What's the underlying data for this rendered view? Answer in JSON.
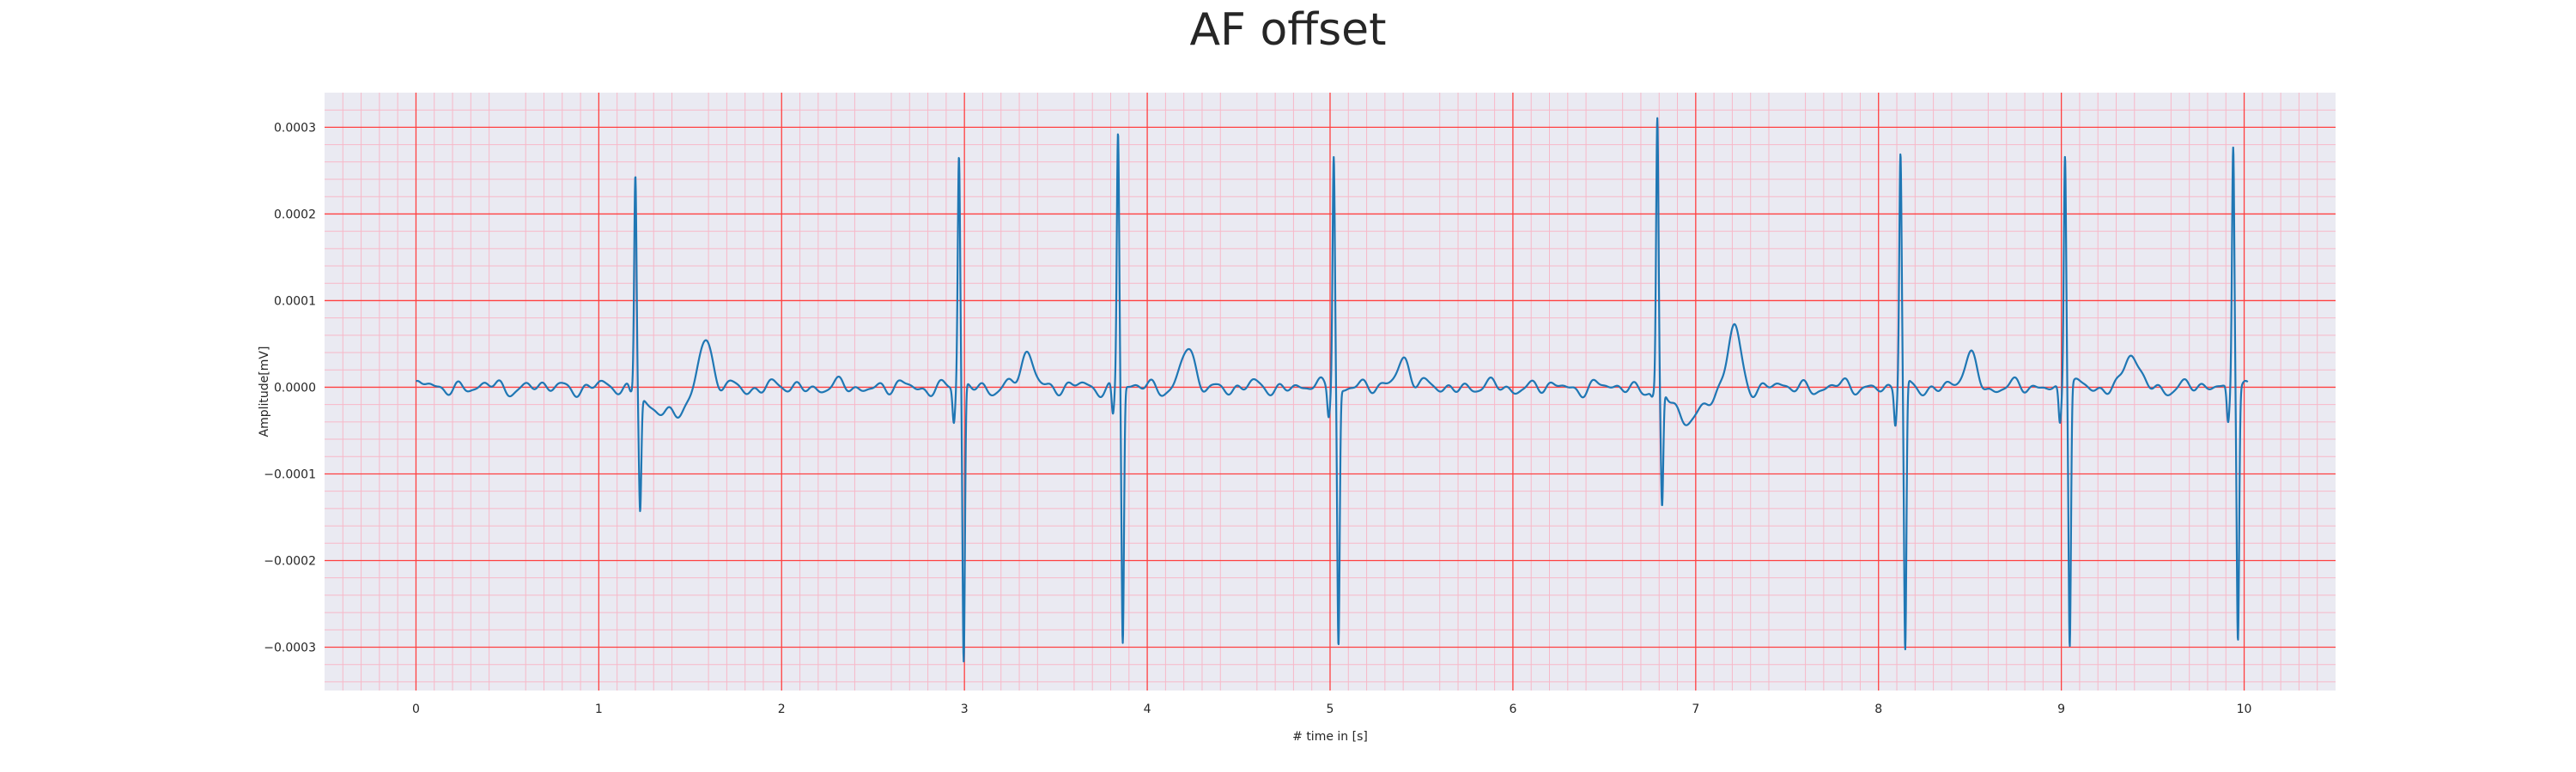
{
  "chart_data": {
    "type": "line",
    "title": "AF offset",
    "xlabel": "# time in [s]",
    "ylabel": "Amplitude[mV]",
    "xlim": [
      -0.5,
      10.5
    ],
    "ylim": [
      -0.00035,
      0.00034
    ],
    "xticks": [
      "0",
      "1",
      "2",
      "3",
      "4",
      "5",
      "6",
      "7",
      "8",
      "9",
      "10"
    ],
    "yticks": [
      "0.0003",
      "0.0002",
      "0.0001",
      "0.0000",
      "−0.0001",
      "−0.0002",
      "−0.0003"
    ],
    "ytick_values": [
      0.0003,
      0.0002,
      0.0001,
      0.0,
      -0.0001,
      -0.0002,
      -0.0003
    ],
    "grid": true,
    "minor_grid": true,
    "colors": {
      "background": "#eaeaf2",
      "major_grid": "#ff4040",
      "minor_grid": "#f7b8c8",
      "line": "#1f77b4"
    },
    "series": [
      {
        "beats": [
          {
            "t": 1.2,
            "r": 0.000255,
            "s": -0.00013,
            "q": -5e-06
          },
          {
            "t": 2.97,
            "r": 0.000268,
            "s": -0.00032,
            "q": -4e-05
          },
          {
            "t": 3.84,
            "r": 0.000295,
            "s": -0.000295,
            "q": -3.5e-05
          },
          {
            "t": 5.02,
            "r": 0.000272,
            "s": -0.000295,
            "q": -3e-05
          },
          {
            "t": 6.79,
            "r": 0.000312,
            "s": -0.000135,
            "q": -5e-06
          },
          {
            "t": 8.12,
            "r": 0.000268,
            "s": -0.000312,
            "q": -4e-05
          },
          {
            "t": 9.02,
            "r": 0.000275,
            "s": -0.000298,
            "q": -4e-05
          },
          {
            "t": 9.94,
            "r": 0.000287,
            "s": -0.000285,
            "q": -4e-05
          }
        ],
        "t_waves": [
          {
            "t": 1.58,
            "a": 5.7e-05
          },
          {
            "t": 3.35,
            "a": 4e-05
          },
          {
            "t": 4.22,
            "a": 4.2e-05
          },
          {
            "t": 5.4,
            "a": 3.6e-05
          },
          {
            "t": 7.21,
            "a": 6.8e-05
          },
          {
            "t": 8.5,
            "a": 3.5e-05
          },
          {
            "t": 9.38,
            "a": 4e-05
          }
        ]
      }
    ]
  }
}
